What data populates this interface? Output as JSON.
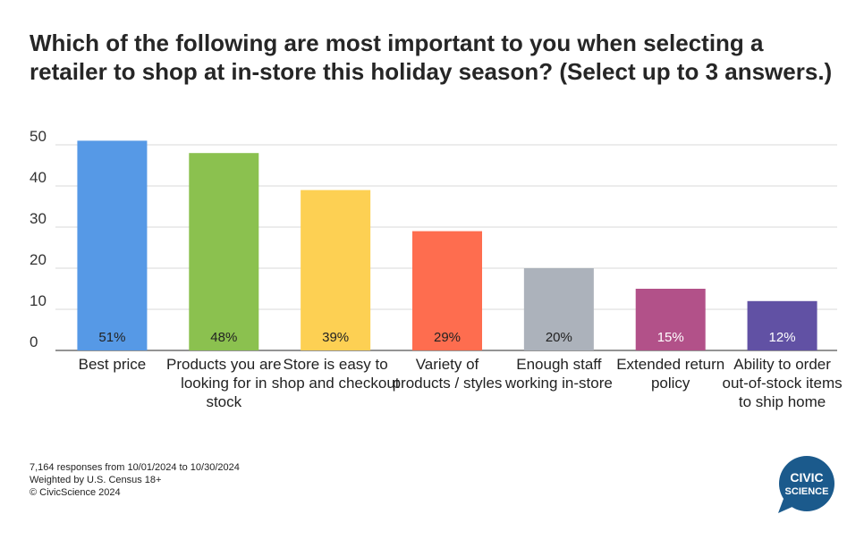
{
  "chart_data": {
    "type": "bar",
    "title": "Which of the following are most important to you when selecting a retailer to shop at in-store this holiday season? (Select up to 3 answers.)",
    "categories": [
      "Best price",
      "Products you are looking for in stock",
      "Store is easy to shop and checkout",
      "Variety of products / styles",
      "Enough staff working in-store",
      "Extended return policy",
      "Ability to order out-of-stock items to ship home"
    ],
    "values": [
      51,
      48,
      39,
      29,
      20,
      15,
      12
    ],
    "value_labels": [
      "51%",
      "48%",
      "39%",
      "29%",
      "20%",
      "15%",
      "12%"
    ],
    "colors": [
      "#5699e6",
      "#8bc14f",
      "#fdd053",
      "#fe6d4f",
      "#acb2bb",
      "#b25189",
      "#6151a4"
    ],
    "label_colors": [
      "#222222",
      "#222222",
      "#222222",
      "#222222",
      "#222222",
      "#ffffff",
      "#ffffff"
    ],
    "ylim": [
      0,
      50
    ],
    "yticks": [
      0,
      10,
      20,
      30,
      40,
      50
    ],
    "grid": true,
    "xlabel": "",
    "ylabel": ""
  },
  "footnote": {
    "line1": "7,164 responses from 10/01/2024 to 10/30/2024",
    "line2": "Weighted by U.S. Census 18+",
    "line3": "© CivicScience 2024"
  },
  "logo": {
    "line1": "CIVIC",
    "line2": "SCIENCE",
    "color": "#1b5a8c"
  }
}
